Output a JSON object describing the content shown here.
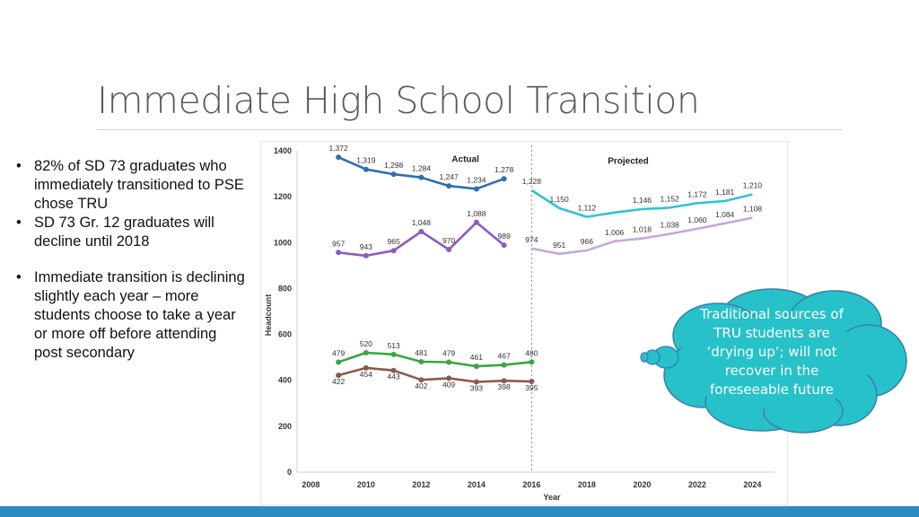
{
  "slide": {
    "title": "Immediate High School Transition",
    "bullets": [
      "82% of SD 73 graduates who immediately transitioned to PSE chose TRU",
      "SD 73 Gr. 12 graduates will decline until 2018",
      "Immediate transition is declining slightly each year – more students choose to take a year or more off before attending post secondary"
    ],
    "callout": "Traditional sources of TRU students are ‘drying up’; will not recover in the foreseeable future"
  },
  "colors": {
    "blue": "#2f6fb0",
    "cyan": "#2ec4d2",
    "purple": "#8f5bbf",
    "lavender": "#c6a8dc",
    "green": "#3aa640",
    "brown": "#8b5a4c",
    "cloud": "#26c1c9",
    "accent_bar": "#2e8bc0"
  },
  "chart_data": {
    "type": "line",
    "xlabel": "Year",
    "ylabel": "Headcount",
    "xlim": [
      2007.5,
      2024.8
    ],
    "ylim": [
      0,
      1400
    ],
    "xticks": [
      2008,
      2010,
      2012,
      2014,
      2016,
      2018,
      2020,
      2022,
      2024
    ],
    "yticks": [
      0,
      200,
      400,
      600,
      800,
      1000,
      1200,
      1400
    ],
    "divider_x": 2016,
    "annotations": [
      {
        "text": "Actual",
        "x": 2013.6,
        "y": 1363
      },
      {
        "text": "Projected",
        "x": 2019.5,
        "y": 1355
      }
    ],
    "series": [
      {
        "color": "#2f6fb0",
        "marker": true,
        "x": [
          2009,
          2010,
          2011,
          2012,
          2013,
          2014,
          2015
        ],
        "values": [
          1372,
          1319,
          1298,
          1284,
          1247,
          1234,
          1278
        ],
        "labels": [
          "1,372",
          "1,319",
          "1,298",
          "1,284",
          "1,247",
          "1,234",
          "1,278"
        ]
      },
      {
        "color": "#2ec4d2",
        "marker": false,
        "x": [
          2016,
          2017,
          2018,
          2019,
          2020,
          2021,
          2022,
          2023,
          2024
        ],
        "values": [
          1228,
          1150,
          1112,
          1131,
          1146,
          1152,
          1172,
          1181,
          1210
        ],
        "labels": [
          "1,228",
          "1,150",
          "1,112",
          "",
          "1,146",
          "1,152",
          "1,172",
          "1,181",
          "1,210"
        ]
      },
      {
        "color": "#8f5bbf",
        "marker": true,
        "x": [
          2009,
          2010,
          2011,
          2012,
          2013,
          2014,
          2015
        ],
        "values": [
          957,
          943,
          965,
          1048,
          970,
          1088,
          989
        ],
        "labels": [
          "957",
          "943",
          "965",
          "1,048",
          "970",
          "1,088",
          "989"
        ]
      },
      {
        "color": "#c6a8dc",
        "marker": false,
        "x": [
          2016,
          2017,
          2018,
          2019,
          2020,
          2021,
          2022,
          2023,
          2024
        ],
        "values": [
          974,
          951,
          966,
          1006,
          1018,
          1038,
          1060,
          1084,
          1108
        ],
        "labels": [
          "974",
          "951",
          "966",
          "1,006",
          "1,018",
          "1,038",
          "1,060",
          "1,084",
          "1,108"
        ]
      },
      {
        "color": "#3aa640",
        "marker": true,
        "x": [
          2009,
          2010,
          2011,
          2012,
          2013,
          2014,
          2015,
          2016
        ],
        "values": [
          479,
          520,
          513,
          481,
          479,
          461,
          467,
          480
        ],
        "labels": [
          "479",
          "520",
          "513",
          "481",
          "479",
          "461",
          "467",
          "480"
        ]
      },
      {
        "color": "#8b5a4c",
        "marker": true,
        "x": [
          2009,
          2010,
          2011,
          2012,
          2013,
          2014,
          2015,
          2016
        ],
        "values": [
          422,
          454,
          443,
          402,
          409,
          393,
          398,
          395
        ],
        "labels": [
          "422",
          "454",
          "443",
          "402",
          "409",
          "393",
          "398",
          "395"
        ]
      }
    ]
  }
}
